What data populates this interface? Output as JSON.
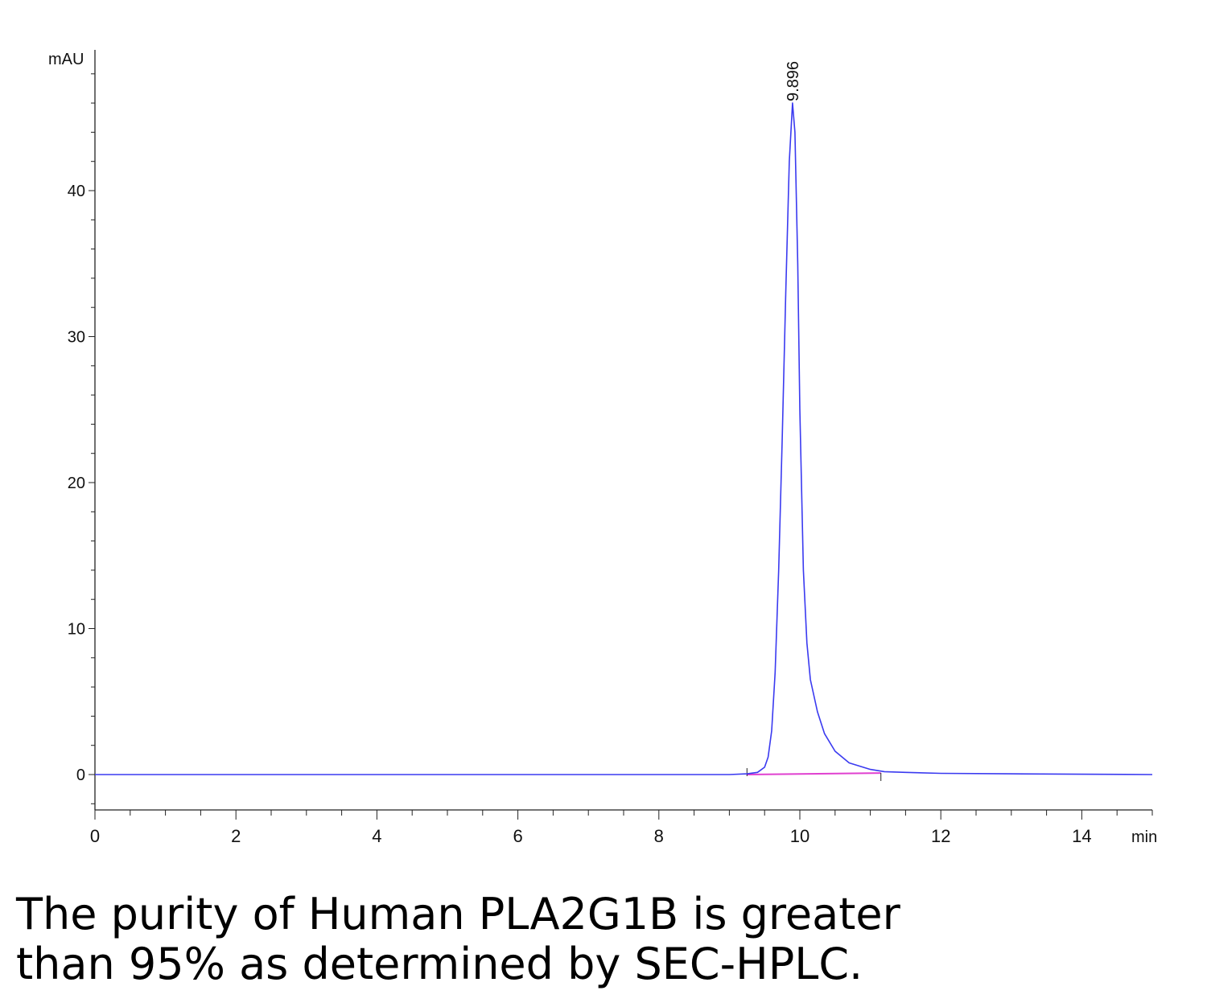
{
  "chart_data": {
    "type": "line",
    "title": "",
    "ylabel": "mAU",
    "xlabel": "min",
    "xlim": [
      0,
      15
    ],
    "ylim": [
      -2.5,
      49
    ],
    "x_ticks": [
      0,
      2,
      4,
      6,
      8,
      10,
      12,
      14
    ],
    "y_ticks": [
      0,
      10,
      20,
      30,
      40
    ],
    "grid": false,
    "series": [
      {
        "color": "#3a3af0",
        "points": [
          [
            0,
            0
          ],
          [
            0.5,
            0
          ],
          [
            1,
            0
          ],
          [
            2,
            0
          ],
          [
            3,
            0
          ],
          [
            4,
            0
          ],
          [
            5,
            0
          ],
          [
            6,
            0
          ],
          [
            7,
            0
          ],
          [
            8,
            0
          ],
          [
            9,
            0
          ],
          [
            9.25,
            0.05
          ],
          [
            9.4,
            0.15
          ],
          [
            9.5,
            0.5
          ],
          [
            9.55,
            1.2
          ],
          [
            9.6,
            3
          ],
          [
            9.65,
            7
          ],
          [
            9.7,
            14
          ],
          [
            9.75,
            23
          ],
          [
            9.8,
            33
          ],
          [
            9.85,
            42
          ],
          [
            9.896,
            46
          ],
          [
            9.93,
            44
          ],
          [
            9.97,
            35
          ],
          [
            10.0,
            25
          ],
          [
            10.05,
            14
          ],
          [
            10.1,
            9
          ],
          [
            10.15,
            6.5
          ],
          [
            10.25,
            4.3
          ],
          [
            10.35,
            2.8
          ],
          [
            10.5,
            1.6
          ],
          [
            10.7,
            0.8
          ],
          [
            11.0,
            0.35
          ],
          [
            11.2,
            0.2
          ],
          [
            11.5,
            0.15
          ],
          [
            12,
            0.08
          ],
          [
            13,
            0.05
          ],
          [
            14,
            0.02
          ],
          [
            15,
            0
          ]
        ]
      }
    ],
    "baseline": {
      "color": "#e040d0",
      "x": [
        9.25,
        11.15
      ]
    },
    "peak_annotation": {
      "x": 9.896,
      "label": "9.896"
    },
    "integration_marks": [
      9.25,
      11.15
    ]
  },
  "caption": {
    "line1": "The purity of Human PLA2G1B is greater",
    "line2": "than 95% as determined by SEC-HPLC."
  }
}
